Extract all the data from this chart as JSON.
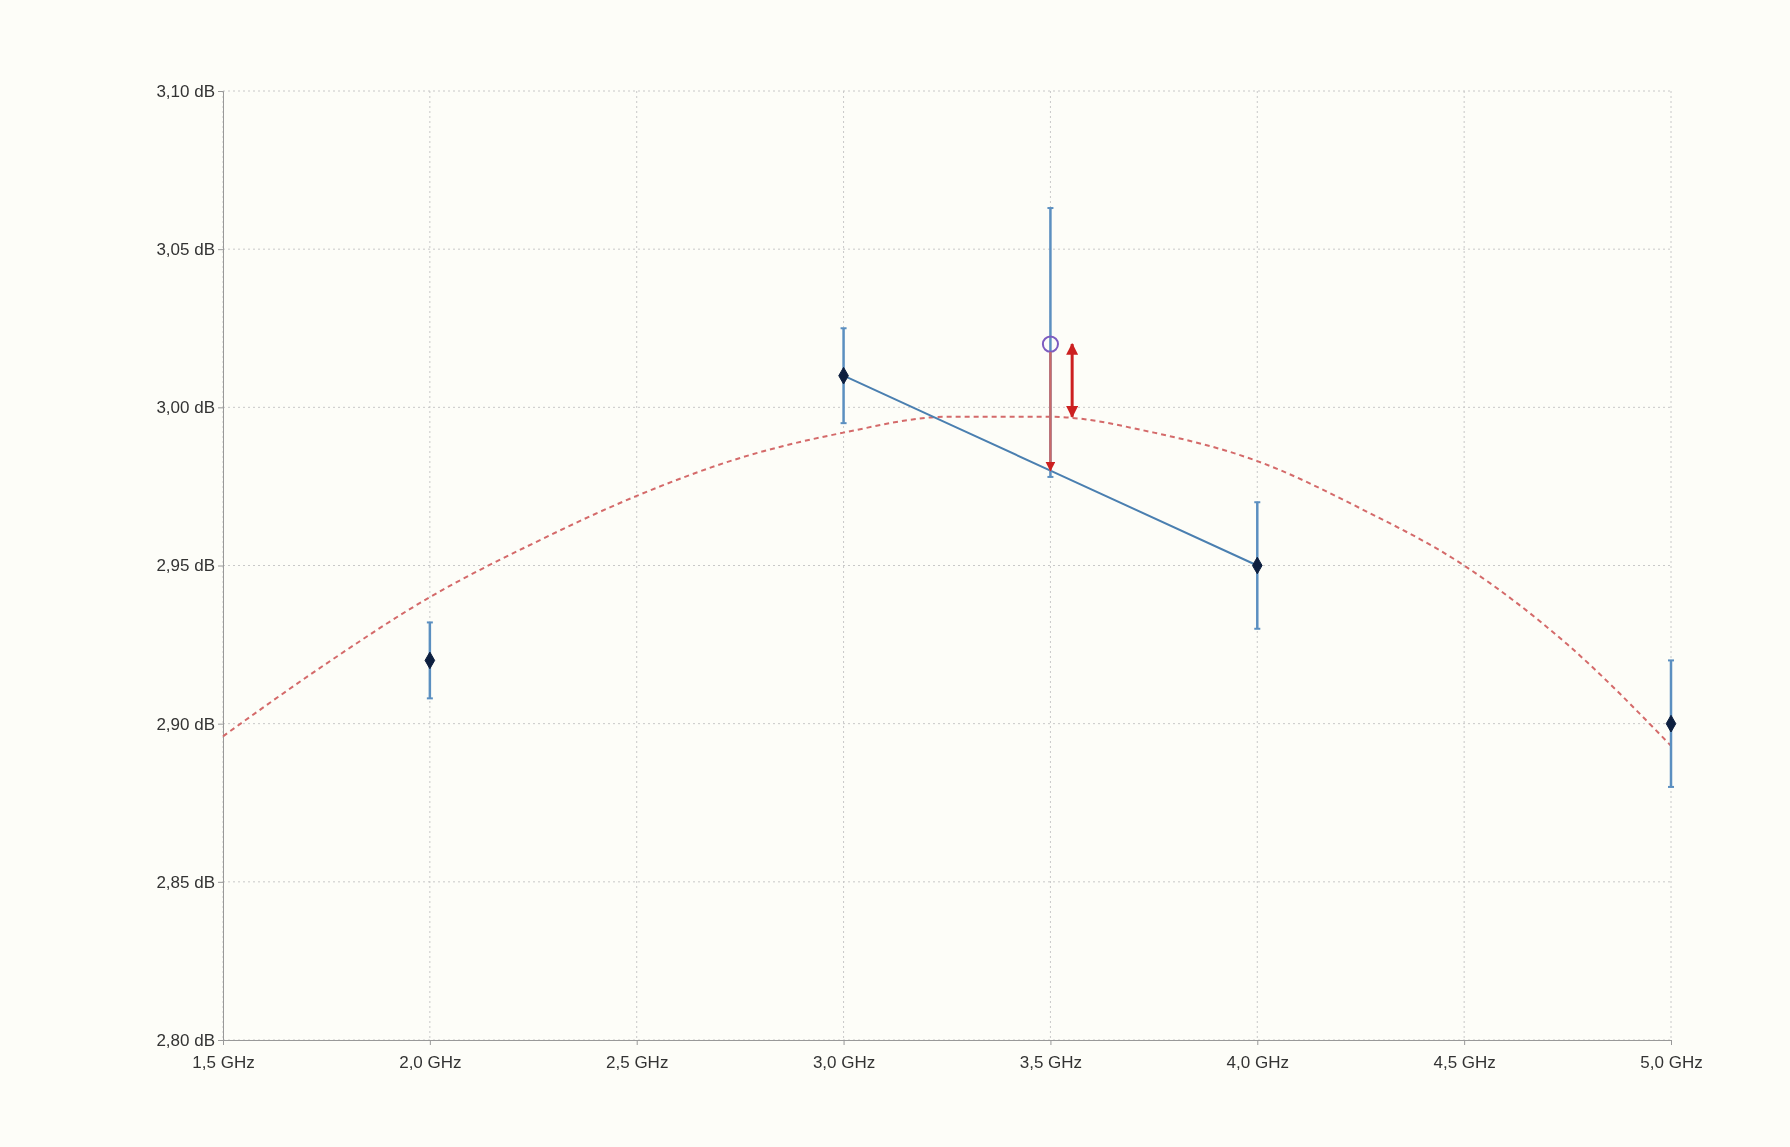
{
  "chart_data": {
    "type": "scatter",
    "xlim": [
      1.5,
      5.0
    ],
    "ylim": [
      2.8,
      3.1
    ],
    "xticks": [
      {
        "value": 1.5,
        "label": "1,5 GHz"
      },
      {
        "value": 2.0,
        "label": "2,0 GHz"
      },
      {
        "value": 2.5,
        "label": "2,5 GHz"
      },
      {
        "value": 3.0,
        "label": "3,0 GHz"
      },
      {
        "value": 3.5,
        "label": "3,5 GHz"
      },
      {
        "value": 4.0,
        "label": "4,0 GHz"
      },
      {
        "value": 4.5,
        "label": "4,5 GHz"
      },
      {
        "value": 5.0,
        "label": "5,0 GHz"
      }
    ],
    "yticks": [
      {
        "value": 2.8,
        "label": "2,80 dB"
      },
      {
        "value": 2.85,
        "label": "2,85 dB"
      },
      {
        "value": 2.9,
        "label": "2,90 dB"
      },
      {
        "value": 2.95,
        "label": "2,95 dB"
      },
      {
        "value": 3.0,
        "label": "3,00 dB"
      },
      {
        "value": 3.05,
        "label": "3,05 dB"
      },
      {
        "value": 3.1,
        "label": "3,10 dB"
      }
    ],
    "grid": true,
    "series": [
      {
        "type": "line",
        "color": "#d46a6a",
        "line_style": "dashed",
        "marker": "none",
        "x": [
          1.5,
          1.75,
          2.0,
          2.25,
          2.5,
          2.75,
          3.0,
          3.25,
          3.5,
          3.75,
          4.0,
          4.25,
          4.5,
          4.75,
          5.0
        ],
        "values": [
          2.896,
          2.919,
          2.94,
          2.957,
          2.972,
          2.984,
          2.992,
          2.997,
          2.997,
          2.992,
          2.983,
          2.968,
          2.95,
          2.925,
          2.893
        ]
      },
      {
        "type": "line",
        "color": "#4a7fb0",
        "line_style": "solid",
        "marker": "none",
        "x": [
          3.0,
          3.5,
          4.0
        ],
        "values": [
          3.01,
          2.98,
          2.95
        ]
      },
      {
        "color": "#0d1f3f",
        "marker": "diamond",
        "x": [
          2.0,
          3.0,
          4.0,
          5.0
        ],
        "values": [
          2.92,
          3.01,
          2.95,
          2.9
        ],
        "errors": [
          [
            2.908,
            2.932
          ],
          [
            2.995,
            3.025
          ],
          [
            2.93,
            2.97
          ],
          [
            2.88,
            2.92
          ]
        ]
      },
      {
        "color": "#7d5cc0",
        "marker": "circle",
        "x": [
          3.5
        ],
        "values": [
          3.02
        ],
        "errors": [
          [
            2.978,
            3.063
          ]
        ]
      }
    ]
  }
}
